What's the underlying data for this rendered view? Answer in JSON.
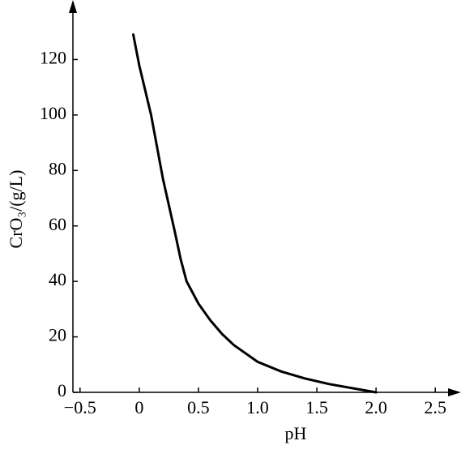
{
  "chart_data": {
    "type": "line",
    "x_label": "pH",
    "y_label": "CrO₃/(g/L)",
    "x": [
      -0.05,
      0,
      0.1,
      0.2,
      0.3,
      0.35,
      0.4,
      0.5,
      0.6,
      0.7,
      0.8,
      1.0,
      1.2,
      1.4,
      1.6,
      1.8,
      2.0
    ],
    "values": [
      129,
      118,
      100,
      77,
      58,
      48,
      40,
      32,
      26,
      21,
      17,
      11,
      7.5,
      5,
      3,
      1.5,
      0
    ],
    "color": "#000000",
    "xlim": [
      -0.56,
      2.69
    ],
    "ylim": [
      0,
      140
    ],
    "xticks": [
      {
        "value": -0.5,
        "label": "−0.5"
      },
      0,
      0.5,
      {
        "value": 1.0,
        "label": "1.0"
      },
      1.5,
      {
        "value": 2.0,
        "label": "2.0"
      },
      2.5
    ],
    "yticks": [
      0,
      20,
      40,
      60,
      80,
      100,
      120
    ]
  }
}
